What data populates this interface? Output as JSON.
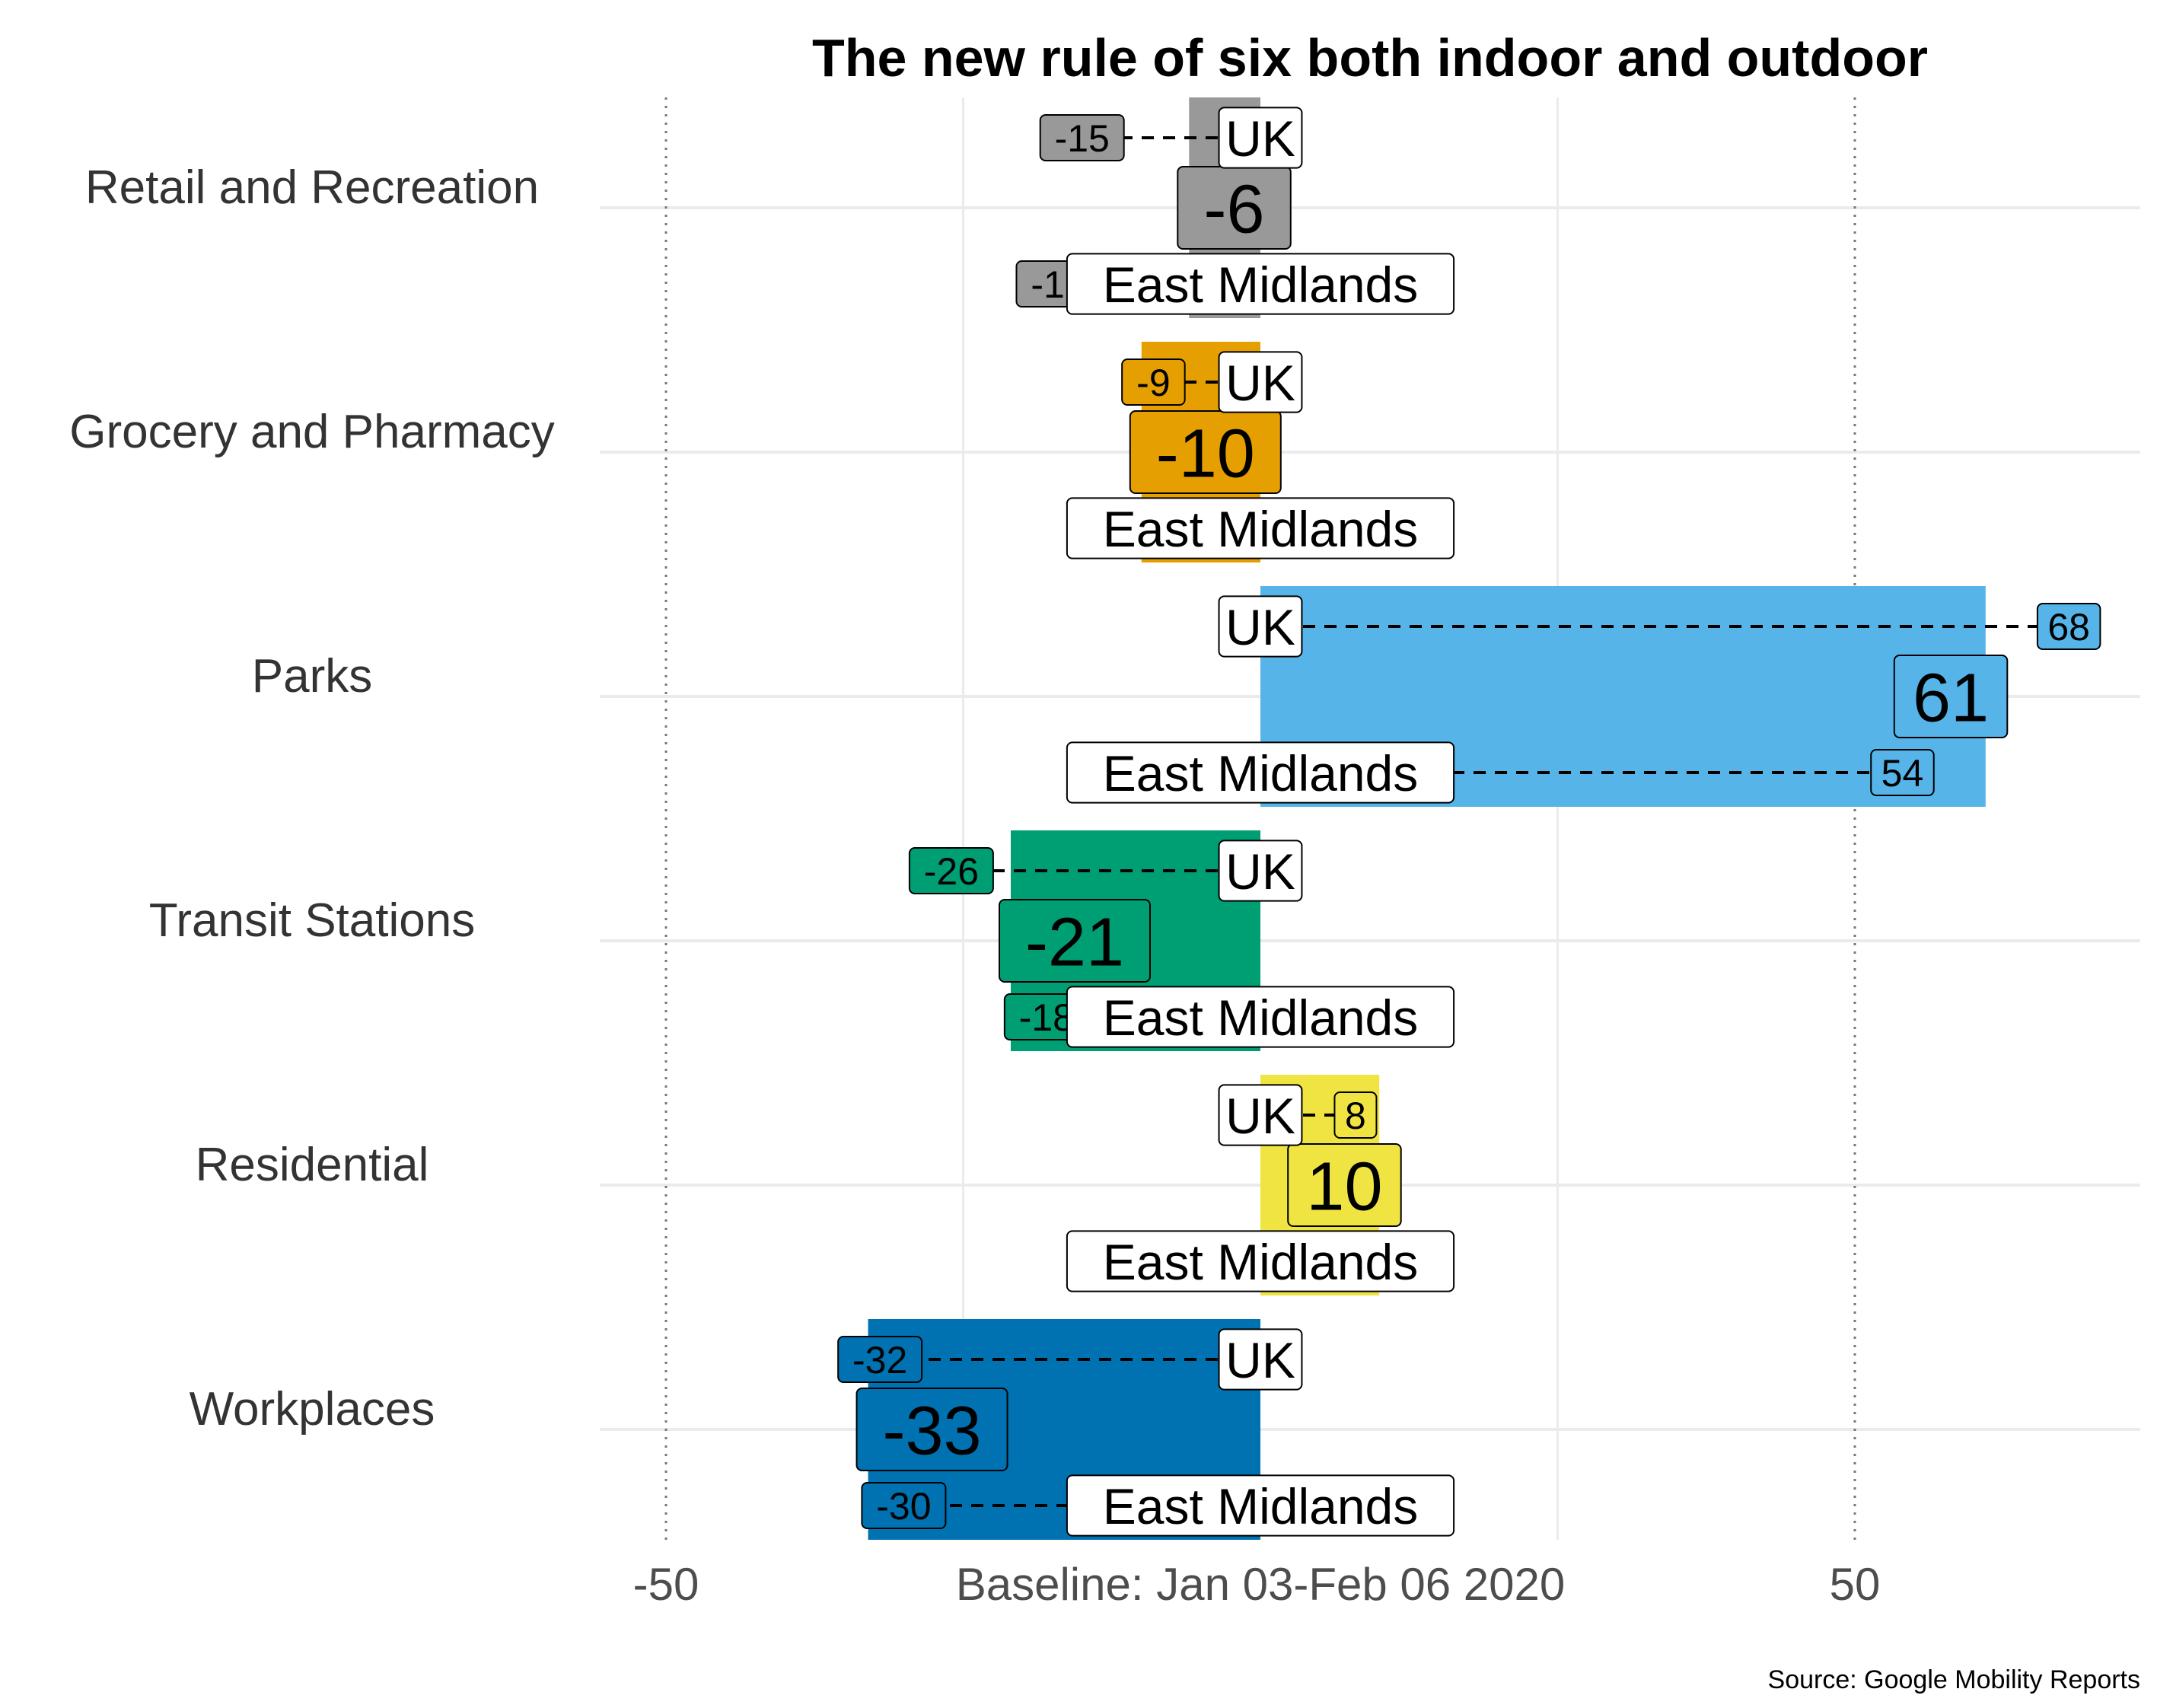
{
  "chart_data": {
    "type": "bar",
    "title": "The new rule of six both indoor and outdoor",
    "caption": "Source: Google Mobility Reports",
    "x_center_label": "Baseline: Jan 03-Feb 06 2020",
    "xlim": [
      -60,
      70
    ],
    "x_ticks": [
      -50,
      50
    ],
    "x_tick_labels": [
      "-50",
      "50"
    ],
    "reference_lines": [
      -50,
      50
    ],
    "grid": true,
    "categories": [
      "Retail and Recreation",
      "Grocery and Pharmacy",
      "Parks",
      "Transit Stations",
      "Residential",
      "Workplaces"
    ],
    "colors": [
      "#999999",
      "#E69F00",
      "#56B4E9",
      "#009E73",
      "#F0E442",
      "#0072B2"
    ],
    "series": [
      {
        "name": "",
        "values": [
          -6,
          -10,
          61,
          -21,
          10,
          -33
        ]
      },
      {
        "name": "UK",
        "values": [
          -15,
          -9,
          68,
          -26,
          8,
          -32
        ]
      },
      {
        "name": "East Midlands",
        "values": [
          -17,
          -10,
          54,
          -18,
          10,
          -30
        ]
      }
    ],
    "value_labels": [
      "-6",
      "-10",
      "61",
      "-21",
      "10",
      "-33"
    ],
    "uk_labels": [
      "-15",
      "-9",
      "68",
      "-26",
      "8",
      "-32"
    ],
    "region_labels": [
      "-17",
      "-10",
      "54",
      "-18",
      "10",
      "-30"
    ],
    "uk_name": "UK",
    "region_name": "East Midlands"
  }
}
